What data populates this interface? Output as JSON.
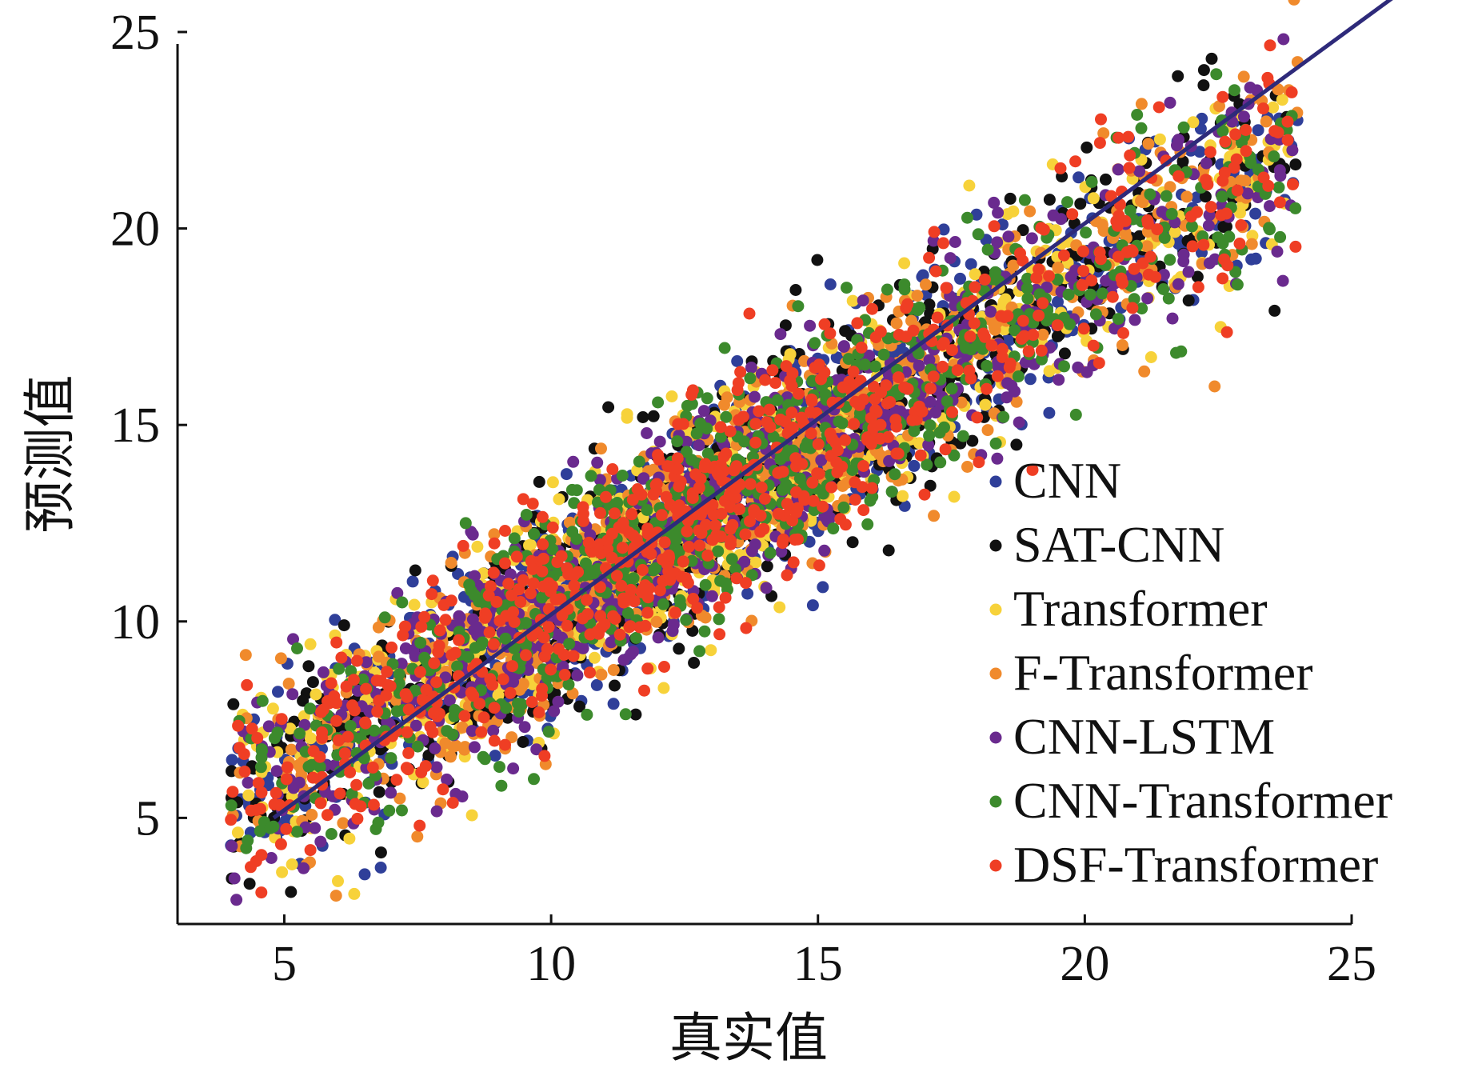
{
  "chart_data": {
    "type": "scatter",
    "xlabel": "真实值",
    "ylabel": "预测值",
    "xlim": [
      3,
      25
    ],
    "ylim": [
      2.3,
      25
    ],
    "xticks": [
      "5",
      "10",
      "15",
      "20",
      "25"
    ],
    "yticks": [
      "5",
      "10",
      "15",
      "20",
      "25"
    ],
    "grid": false,
    "legend_position": "bottom-right",
    "reference_line": {
      "x": [
        4.8,
        26
      ],
      "y": [
        5.0,
        26.1
      ],
      "color": "#2e2a7a"
    },
    "series": [
      {
        "name": "CNN",
        "color": "#2f3f99",
        "seed": 11
      },
      {
        "name": "SAT-CNN",
        "color": "#111111",
        "seed": 23
      },
      {
        "name": "Transformer",
        "color": "#f7d23a",
        "seed": 37
      },
      {
        "name": "F-Transformer",
        "color": "#f08a2c",
        "seed": 41
      },
      {
        "name": "CNN-LSTM",
        "color": "#6a2a8e",
        "seed": 53
      },
      {
        "name": "CNN-Transformer",
        "color": "#3c8a2c",
        "seed": 67
      },
      {
        "name": "DSF-Transformer",
        "color": "#ef3e24",
        "seed": 79
      }
    ],
    "point_generation": {
      "n_per_series": 700,
      "x_range": [
        4,
        24
      ],
      "noise_sd": 1.35,
      "note": "Dense scatter cloud around y ≈ x; points regenerated deterministically from seeds."
    }
  }
}
